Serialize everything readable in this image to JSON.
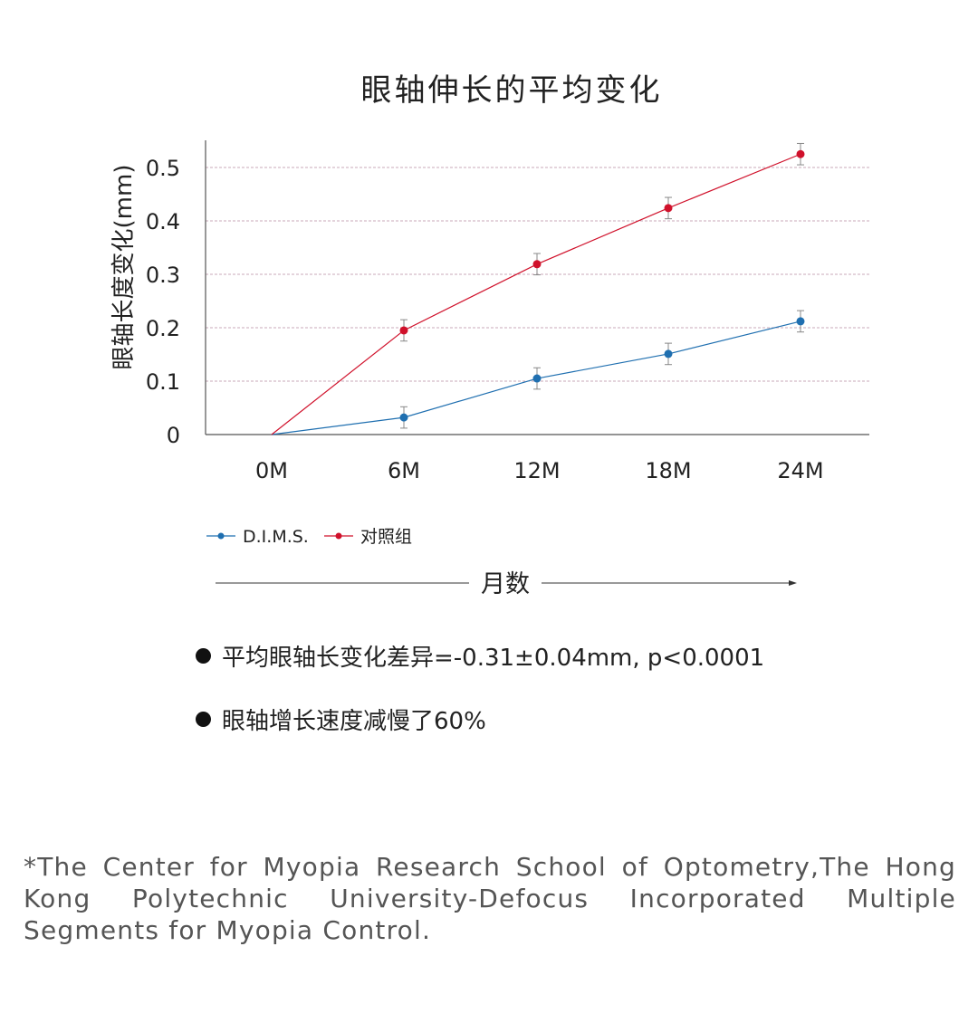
{
  "chart_data": {
    "type": "line",
    "title": "眼轴伸长的平均变化",
    "xlabel": "月数",
    "ylabel": "眼轴长度变化(mm)",
    "categories": [
      "0M",
      "6M",
      "12M",
      "18M",
      "24M"
    ],
    "yticks": [
      "0",
      "0.1",
      "0.2",
      "0.3",
      "0.4",
      "0.5"
    ],
    "ylim": [
      0,
      0.55
    ],
    "grid": true,
    "legend_position": "bottom-left",
    "series": [
      {
        "name": "D.I.M.S.",
        "color": "#1f6fb0",
        "values": [
          0,
          0.032,
          0.105,
          0.151,
          0.212
        ],
        "error": [
          0,
          0.02,
          0.02,
          0.02,
          0.02
        ]
      },
      {
        "name": "对照组",
        "color": "#d0112b",
        "values": [
          0,
          0.195,
          0.319,
          0.424,
          0.525
        ],
        "error": [
          0,
          0.02,
          0.02,
          0.02,
          0.02
        ]
      }
    ]
  },
  "bullets": [
    "平均眼轴长变化差异=-0.31±0.04mm, p<0.0001",
    "眼轴增长速度减慢了60%"
  ],
  "footnote": "*The Center for Myopia Research School of Optometry,The Hong Kong Polytechnic University-Defocus Incorporated Multiple Segments for Myopia Control."
}
